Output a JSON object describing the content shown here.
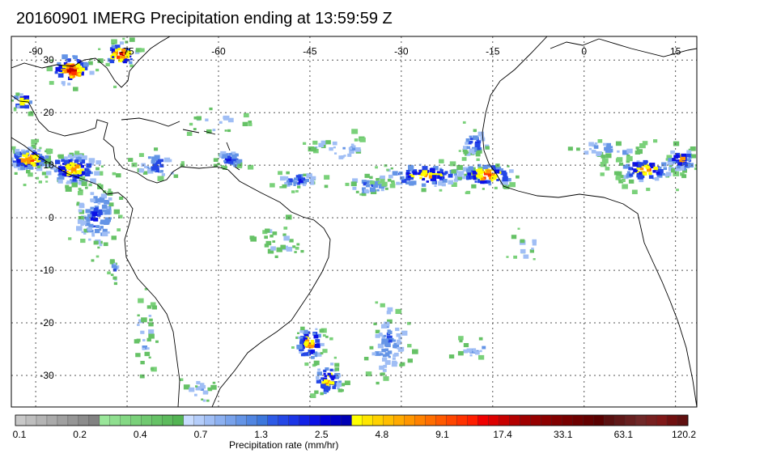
{
  "title": "20160901 IMERG Precipitation ending at 13:59:59 Z",
  "map": {
    "lon_labels": [
      "-90",
      "-75",
      "-60",
      "-45",
      "-30",
      "-15",
      "0",
      "15"
    ],
    "lat_labels": [
      "30",
      "20",
      "10",
      "0",
      "-10",
      "-20",
      "-30"
    ],
    "lon_range": [
      -94,
      18.5
    ],
    "lat_range": [
      -36,
      34.5
    ],
    "grid": true,
    "background_color": "#ffffff",
    "coastline_color": "#000000"
  },
  "legend": {
    "title": "Precipitation rate (mm/hr)",
    "tick_labels": [
      "0.1",
      "0.2",
      "0.4",
      "0.7",
      "1.3",
      "2.5",
      "4.8",
      "9.1",
      "17.4",
      "33.1",
      "63.1",
      "120.2"
    ],
    "colors": [
      "#c8c8c8",
      "#bebebe",
      "#b4b4b4",
      "#aaaaaa",
      "#a0a0a0",
      "#969696",
      "#8c8c8c",
      "#828282",
      "#9ae69a",
      "#8fdf8f",
      "#84d884",
      "#7ad17a",
      "#70c970",
      "#66c266",
      "#5dbb5d",
      "#53b453",
      "#c8dcff",
      "#b4cdfa",
      "#a0bef5",
      "#8cb0f0",
      "#78a2eb",
      "#6494e6",
      "#5085e1",
      "#3c77dc",
      "#2d5ae6",
      "#2447e6",
      "#1b35e6",
      "#1222e6",
      "#0a10e6",
      "#0000dc",
      "#0000c8",
      "#0000b4",
      "#ffff00",
      "#ffe600",
      "#ffd200",
      "#ffbe00",
      "#ffaa00",
      "#ff9600",
      "#ff8200",
      "#ff6e00",
      "#ff5a00",
      "#ff4600",
      "#ff3200",
      "#ff1e00",
      "#f00000",
      "#dc0000",
      "#c80000",
      "#b40000",
      "#a00000",
      "#960000",
      "#8c0000",
      "#820000",
      "#780000",
      "#6e0000",
      "#640000",
      "#5a0000",
      "#5a1010",
      "#601818",
      "#682020",
      "#702828",
      "#782020",
      "#801818",
      "#701010",
      "#601010"
    ]
  }
}
